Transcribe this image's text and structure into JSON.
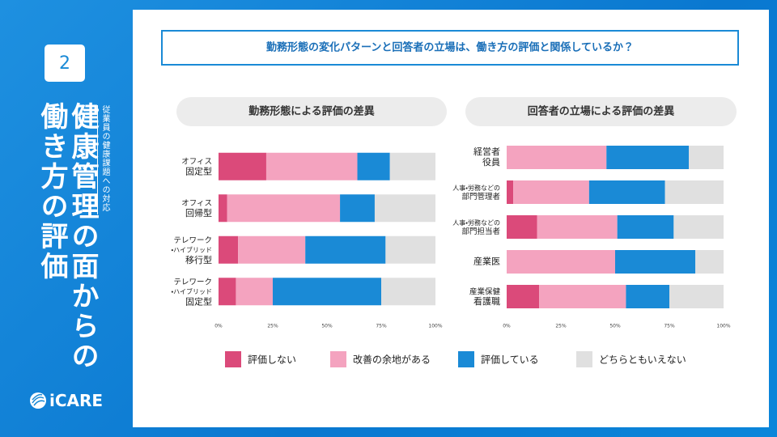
{
  "sidebar": {
    "number": "2",
    "title_lines": [
      "健康管理の面からの",
      "働き方の評価"
    ],
    "subtitle": "従業員の健康課題への対応",
    "logo": "iCARE"
  },
  "question": "勤務形態の変化パターンと回答者の立場は、働き方の評価と関係しているか？",
  "chart_data": [
    {
      "type": "bar",
      "orientation": "horizontal",
      "stacked": true,
      "title": "勤務形態による評価の差異",
      "categories": [
        [
          "オフィス",
          "固定型"
        ],
        [
          "オフィス",
          "回帰型"
        ],
        [
          "テレワーク",
          "・ハイブリッド",
          "移行型"
        ],
        [
          "テレワーク",
          "・ハイブリッド",
          "固定型"
        ]
      ],
      "series": [
        {
          "name": "評価しない",
          "color": "#db4a7a",
          "values": [
            22,
            4,
            9,
            8
          ]
        },
        {
          "name": "改善の余地がある",
          "color": "#f4a3bf",
          "values": [
            42,
            52,
            31,
            17
          ]
        },
        {
          "name": "評価している",
          "color": "#1a8ad6",
          "values": [
            15,
            16,
            37,
            50
          ]
        },
        {
          "name": "どちらともいえない",
          "color": "#e0e0e0",
          "values": [
            21,
            28,
            23,
            25
          ]
        }
      ],
      "xlim": [
        0,
        100
      ],
      "xticks": [
        {
          "value": 0,
          "label": "0%"
        },
        {
          "value": 25,
          "label": "25%"
        },
        {
          "value": 50,
          "label": "50%"
        },
        {
          "value": 75,
          "label": "75%"
        },
        {
          "value": 100,
          "label": "100%"
        }
      ]
    },
    {
      "type": "bar",
      "orientation": "horizontal",
      "stacked": true,
      "title": "回答者の立場による評価の差異",
      "categories": [
        [
          "経営者",
          "役員"
        ],
        [
          "人事・労務などの",
          "部門管理者"
        ],
        [
          "人事・労務などの",
          "部門担当者"
        ],
        [
          "産業医"
        ],
        [
          "産業保健",
          "看護職"
        ]
      ],
      "series": [
        {
          "color": "#db4a7a",
          "values": [
            0,
            3,
            14,
            0,
            15
          ]
        },
        {
          "color": "#f4a3bf",
          "values": [
            46,
            35,
            37,
            50,
            40
          ]
        },
        {
          "color": "#1a8ad6",
          "values": [
            38,
            35,
            26,
            37,
            20
          ]
        },
        {
          "color": "#e0e0e0",
          "values": [
            16,
            27,
            23,
            13,
            25
          ]
        }
      ],
      "xlim": [
        0,
        100
      ],
      "xticks": [
        {
          "value": 0,
          "label": "0%"
        },
        {
          "value": 25,
          "label": "25%"
        },
        {
          "value": 50,
          "label": "50%"
        },
        {
          "value": 75,
          "label": "75%"
        },
        {
          "value": 100,
          "label": "100%"
        }
      ]
    }
  ]
}
